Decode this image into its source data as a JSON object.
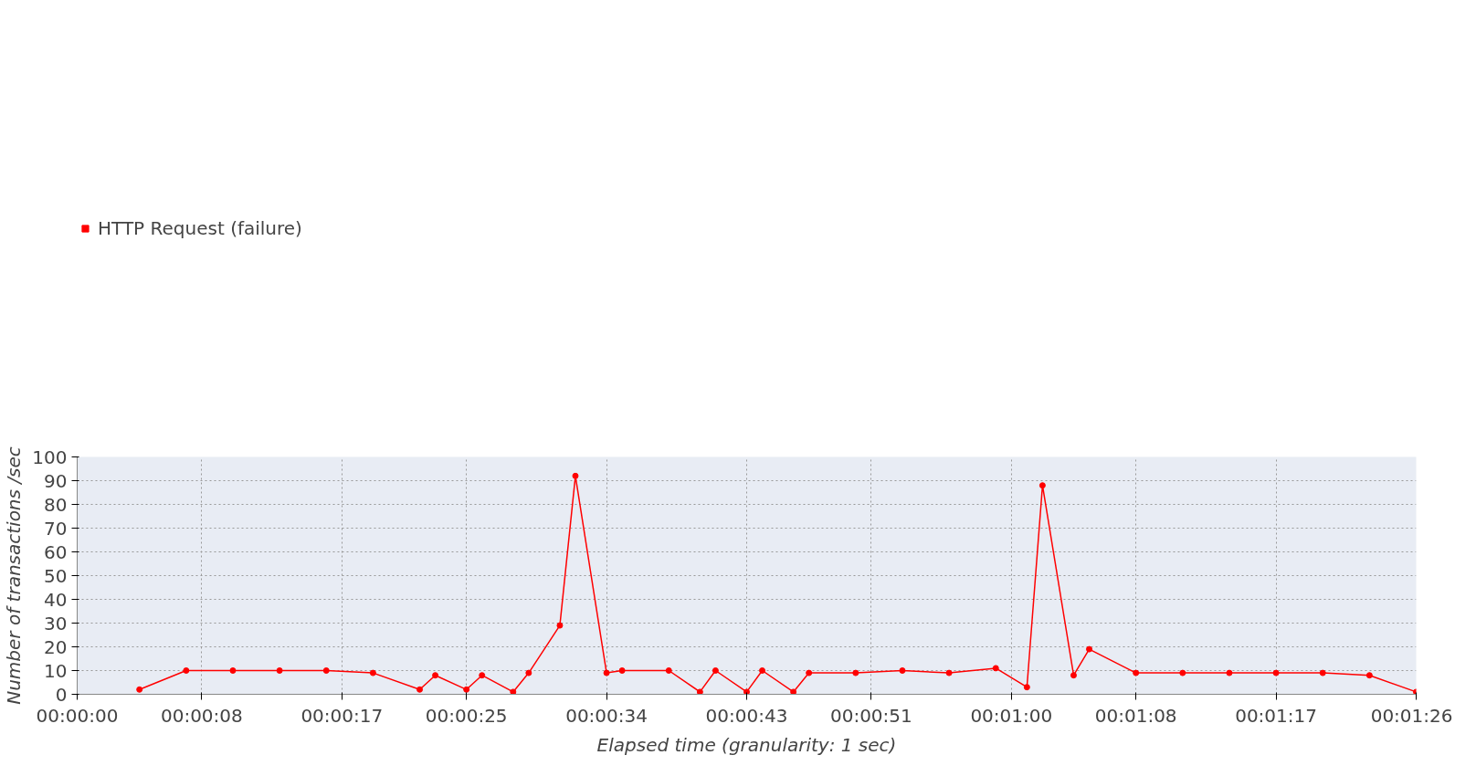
{
  "chart_data": {
    "type": "line",
    "xlabel": "Elapsed time (granularity: 1 sec)",
    "ylabel": "Number of transactions /sec",
    "x": [
      4,
      7,
      10,
      13,
      16,
      19,
      22,
      23,
      25,
      26,
      28,
      29,
      31,
      32,
      34,
      35,
      38,
      40,
      41,
      43,
      44,
      46,
      47,
      50,
      53,
      56,
      59,
      61,
      62,
      64,
      65,
      68,
      71,
      74,
      77,
      80,
      83,
      86
    ],
    "series": [
      {
        "name": "HTTP Request (failure)",
        "color": "#ff0000",
        "values": [
          2,
          10,
          10,
          10,
          10,
          9,
          2,
          8,
          2,
          8,
          1,
          9,
          29,
          92,
          9,
          10,
          10,
          1,
          10,
          1,
          10,
          1,
          9,
          9,
          10,
          9,
          11,
          3,
          88,
          8,
          19,
          9,
          9,
          9,
          9,
          9,
          8,
          1
        ]
      }
    ],
    "xlim": [
      0,
      86
    ],
    "ylim": [
      0,
      100
    ],
    "xticks": [
      {
        "value": 0,
        "label": "00:00:00"
      },
      {
        "value": 8,
        "label": "00:00:08"
      },
      {
        "value": 17,
        "label": "00:00:17"
      },
      {
        "value": 25,
        "label": "00:00:25"
      },
      {
        "value": 34,
        "label": "00:00:34"
      },
      {
        "value": 43,
        "label": "00:00:43"
      },
      {
        "value": 51,
        "label": "00:00:51"
      },
      {
        "value": 60,
        "label": "00:01:00"
      },
      {
        "value": 68,
        "label": "00:01:08"
      },
      {
        "value": 77,
        "label": "00:01:17"
      },
      {
        "value": 86,
        "label": "00:01:26"
      }
    ],
    "yticks": [
      0,
      10,
      20,
      30,
      40,
      50,
      60,
      70,
      80,
      90,
      100
    ],
    "grid": true,
    "legend": "top left",
    "marker": "circle",
    "line_style": "solid"
  }
}
